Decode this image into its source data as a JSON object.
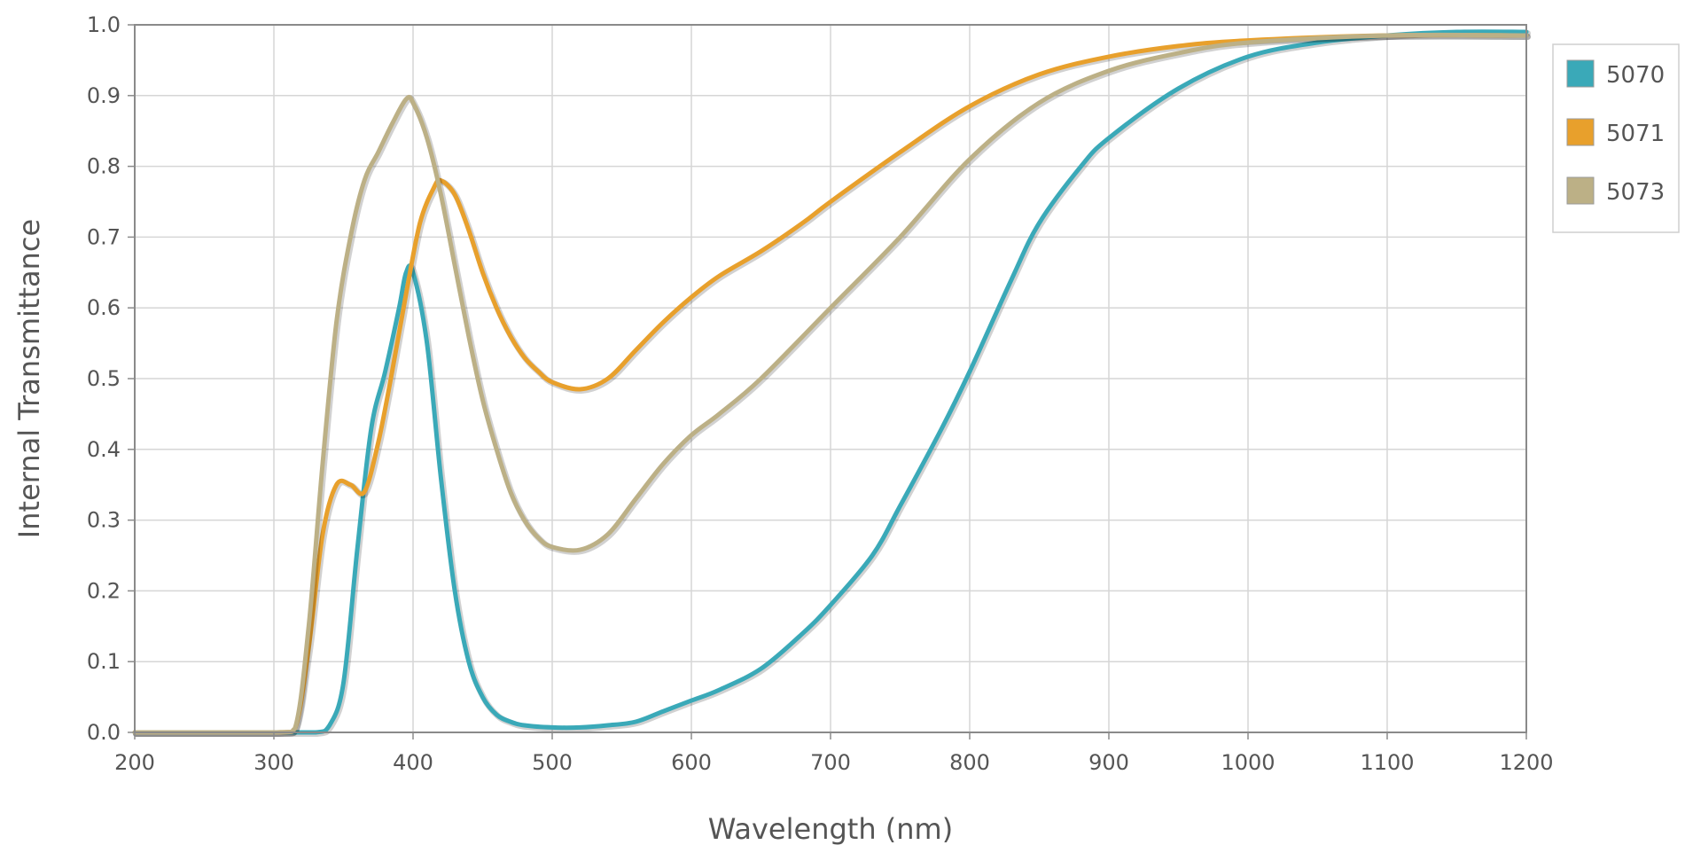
{
  "chart_data": {
    "type": "line",
    "title": "",
    "xlabel": "Wavelength (nm)",
    "ylabel": "Internal Transmittance",
    "xlim": [
      200,
      1200
    ],
    "ylim": [
      0.0,
      1.0
    ],
    "xticks": [
      "200",
      "300",
      "400",
      "500",
      "600",
      "700",
      "800",
      "900",
      "1000",
      "1100",
      "1200"
    ],
    "yticks": [
      "0.0",
      "0.1",
      "0.2",
      "0.3",
      "0.4",
      "0.5",
      "0.6",
      "0.7",
      "0.8",
      "0.9",
      "1.0"
    ],
    "grid": true,
    "legend_position": "right-top",
    "series": [
      {
        "name": "5070",
        "color": "#3aa9b8",
        "x": [
          200,
          300,
          330,
          340,
          350,
          360,
          370,
          380,
          390,
          395,
          400,
          410,
          420,
          430,
          440,
          450,
          460,
          470,
          480,
          500,
          520,
          540,
          560,
          580,
          600,
          620,
          650,
          680,
          700,
          730,
          750,
          780,
          800,
          830,
          850,
          880,
          900,
          950,
          1000,
          1050,
          1100,
          1150,
          1200
        ],
        "y": [
          0,
          0,
          0,
          0.01,
          0.07,
          0.26,
          0.43,
          0.51,
          0.6,
          0.65,
          0.65,
          0.55,
          0.36,
          0.2,
          0.1,
          0.05,
          0.025,
          0.015,
          0.01,
          0.007,
          0.007,
          0.01,
          0.015,
          0.03,
          0.045,
          0.06,
          0.09,
          0.14,
          0.18,
          0.25,
          0.32,
          0.43,
          0.51,
          0.64,
          0.72,
          0.8,
          0.84,
          0.91,
          0.955,
          0.975,
          0.985,
          0.99,
          0.99
        ]
      },
      {
        "name": "5071",
        "color": "#e8a02c",
        "x": [
          200,
          300,
          315,
          325,
          335,
          345,
          355,
          365,
          375,
          385,
          395,
          405,
          415,
          420,
          430,
          440,
          450,
          460,
          470,
          480,
          490,
          500,
          520,
          540,
          560,
          580,
          600,
          620,
          650,
          680,
          700,
          750,
          800,
          850,
          900,
          950,
          1000,
          1100,
          1200
        ],
        "y": [
          0,
          0,
          0.005,
          0.12,
          0.28,
          0.35,
          0.35,
          0.34,
          0.41,
          0.51,
          0.62,
          0.72,
          0.77,
          0.78,
          0.76,
          0.71,
          0.65,
          0.6,
          0.56,
          0.53,
          0.51,
          0.495,
          0.485,
          0.5,
          0.54,
          0.58,
          0.615,
          0.645,
          0.68,
          0.72,
          0.75,
          0.82,
          0.885,
          0.93,
          0.955,
          0.97,
          0.978,
          0.985,
          0.985
        ]
      },
      {
        "name": "5073",
        "color": "#bcb086",
        "x": [
          200,
          300,
          315,
          325,
          335,
          345,
          355,
          365,
          375,
          385,
          395,
          400,
          410,
          420,
          430,
          440,
          450,
          460,
          470,
          480,
          490,
          500,
          520,
          540,
          560,
          580,
          600,
          620,
          650,
          700,
          750,
          800,
          850,
          900,
          950,
          1000,
          1100,
          1200
        ],
        "y": [
          0,
          0,
          0.005,
          0.15,
          0.38,
          0.58,
          0.7,
          0.78,
          0.82,
          0.86,
          0.895,
          0.89,
          0.84,
          0.76,
          0.66,
          0.56,
          0.47,
          0.4,
          0.34,
          0.3,
          0.275,
          0.262,
          0.258,
          0.28,
          0.33,
          0.38,
          0.42,
          0.45,
          0.5,
          0.6,
          0.7,
          0.81,
          0.89,
          0.935,
          0.96,
          0.975,
          0.985,
          0.985
        ]
      }
    ]
  }
}
